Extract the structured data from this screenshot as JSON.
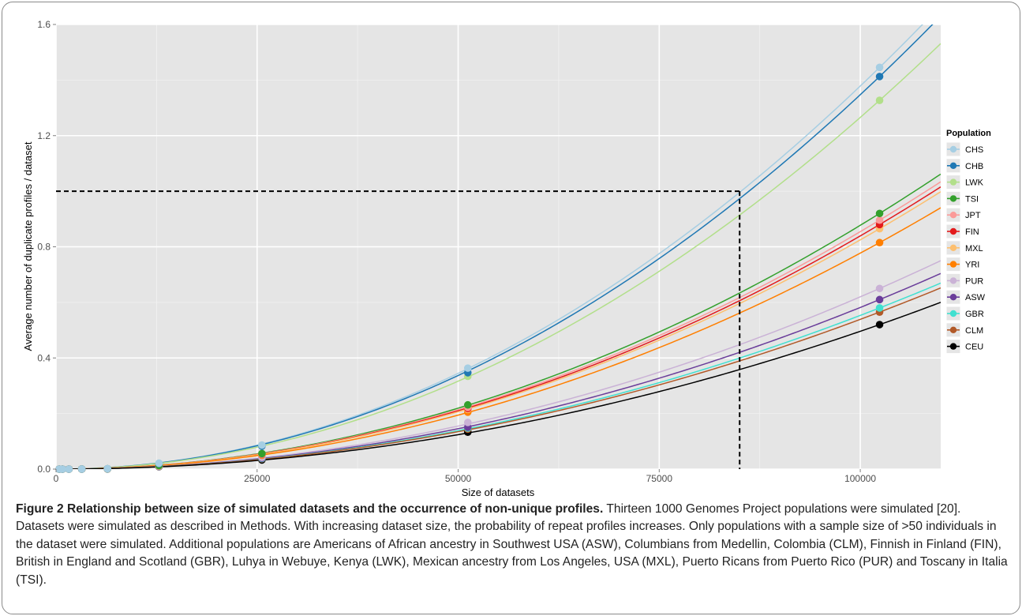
{
  "chart_data": {
    "type": "scatter",
    "xlabel": "Size of datasets",
    "ylabel": "Average number of duplicate profiles / dataset",
    "xlim": [
      0,
      110000
    ],
    "ylim": [
      0,
      1.6
    ],
    "x_ticks": [
      0,
      25000,
      50000,
      75000,
      100000
    ],
    "x_tick_labels": [
      "0",
      "25000",
      "50000",
      "75000",
      "100000"
    ],
    "y_ticks": [
      0.0,
      0.4,
      0.8,
      1.2,
      1.6
    ],
    "y_tick_labels": [
      "0.0",
      "0.4",
      "0.8",
      "1.2",
      "1.6"
    ],
    "grid": true,
    "fitted_curves": true,
    "legend_title": "Population",
    "legend_position": "right",
    "reference_lines": {
      "x": 85000,
      "y": 1.0,
      "style": "dashed"
    },
    "x": [
      400,
      800,
      1600,
      3200,
      6400,
      12800,
      25600,
      51200,
      102400
    ],
    "series": [
      {
        "name": "CHS",
        "color": "#a6cee3",
        "values": [
          0,
          0,
          0,
          0.0002,
          0.0013,
          0.0214,
          0.0865,
          0.3634,
          1.4456
        ]
      },
      {
        "name": "CHB",
        "color": "#1f78b4",
        "values": [
          0,
          0,
          0,
          0.0002,
          0.0013,
          0.02,
          0.083,
          0.347,
          1.4128
        ]
      },
      {
        "name": "LWK",
        "color": "#b2df8a",
        "values": [
          0,
          0,
          0,
          0.0002,
          0.0012,
          0.02,
          0.085,
          0.334,
          1.327
        ]
      },
      {
        "name": "TSI",
        "color": "#33a02c",
        "values": [
          0,
          0,
          0,
          0.0001,
          0.001,
          0.013,
          0.056,
          0.231,
          0.92
        ]
      },
      {
        "name": "JPT",
        "color": "#fb9a99",
        "values": [
          0,
          0,
          0,
          0.0001,
          0.0009,
          0.013,
          0.054,
          0.222,
          0.896
        ]
      },
      {
        "name": "FIN",
        "color": "#e31a1c",
        "values": [
          0,
          0,
          0,
          0.0001,
          0.0009,
          0.013,
          0.053,
          0.218,
          0.88
        ]
      },
      {
        "name": "MXL",
        "color": "#fdbf6f",
        "values": [
          0,
          0,
          0,
          0.0001,
          0.0009,
          0.0125,
          0.052,
          0.215,
          0.865
        ]
      },
      {
        "name": "YRI",
        "color": "#ff7f00",
        "values": [
          0,
          0,
          0,
          0.0001,
          0.0008,
          0.0118,
          0.05,
          0.205,
          0.815
        ]
      },
      {
        "name": "PUR",
        "color": "#cab2d6",
        "values": [
          0,
          0,
          0,
          0.0001,
          0.0006,
          0.01,
          0.042,
          0.168,
          0.65
        ]
      },
      {
        "name": "ASW",
        "color": "#6a3d9a",
        "values": [
          0,
          0,
          0,
          0.0001,
          0.0006,
          0.0095,
          0.04,
          0.151,
          0.61
        ]
      },
      {
        "name": "GBR",
        "color": "#40e0d0",
        "values": [
          0,
          0,
          0,
          0.0001,
          0.0005,
          0.0092,
          0.038,
          0.148,
          0.58
        ]
      },
      {
        "name": "CLM",
        "color": "#b15928",
        "values": [
          0,
          0,
          0,
          0.0001,
          0.0005,
          0.009,
          0.037,
          0.144,
          0.565
        ]
      },
      {
        "name": "CEU",
        "color": "#000000",
        "values": [
          0,
          0,
          0,
          0.0001,
          0.0005,
          0.0085,
          0.033,
          0.133,
          0.52
        ]
      }
    ]
  },
  "caption": {
    "label": "Figure 2 Relationship between size of simulated datasets and the occurrence of non-unique profiles.",
    "text": "Thirteen 1000 Genomes Project populations were simulated [20]. Datasets were simulated as described in Methods. With increasing dataset size, the probability of repeat profiles increases. Only populations with a sample size of >50 individuals in the dataset were simulated. Additional populations are Americans of African ancestry in Southwest USA (ASW), Columbians from Medellin, Colombia (CLM), Finnish in Finland (FIN), British in England and Scotland (GBR), Luhya in Webuye, Kenya (LWK), Mexican ancestry from Los Angeles, USA (MXL), Puerto Ricans from Puerto Rico (PUR) and Toscany in Italia (TSI)."
  }
}
